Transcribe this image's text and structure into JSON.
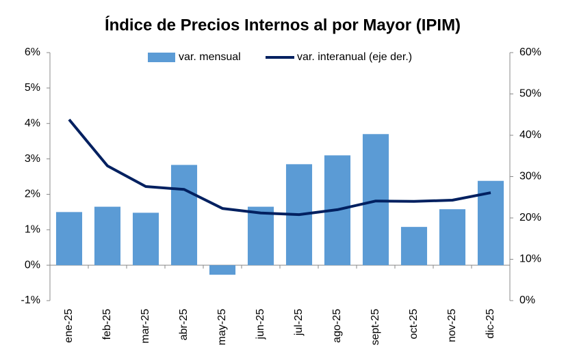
{
  "chart_data": {
    "type": "bar-line",
    "title": "Índice de Precios Internos al por Mayor (IPIM)",
    "categories": [
      "ene-25",
      "feb-25",
      "mar-25",
      "abr-25",
      "may-25",
      "jun-25",
      "jul-25",
      "ago-25",
      "sept-25",
      "oct-25",
      "nov-25",
      "dic-25"
    ],
    "series": [
      {
        "name": "var. mensual",
        "type": "bar",
        "color": "#5b9bd5",
        "values": [
          1.5,
          1.65,
          1.48,
          2.83,
          -0.27,
          1.65,
          2.85,
          3.1,
          3.7,
          1.08,
          1.58,
          2.38
        ]
      },
      {
        "name": "var. interanual (eje der.)",
        "type": "line",
        "axis": "y2",
        "color": "#002060",
        "values": [
          43.8,
          32.6,
          27.6,
          26.9,
          22.3,
          21.2,
          20.8,
          22.0,
          24.1,
          24.0,
          24.3,
          26.1
        ]
      }
    ],
    "ylim": [
      -1,
      6
    ],
    "yticks": [
      {
        "value": -1,
        "label": "-1%"
      },
      {
        "value": 0,
        "label": "0%"
      },
      {
        "value": 1,
        "label": "1%"
      },
      {
        "value": 2,
        "label": "2%"
      },
      {
        "value": 3,
        "label": "3%"
      },
      {
        "value": 4,
        "label": "4%"
      },
      {
        "value": 5,
        "label": "5%"
      },
      {
        "value": 6,
        "label": "6%"
      }
    ],
    "y2lim": [
      0,
      60
    ],
    "y2ticks": [
      {
        "value": 0,
        "label": "0%"
      },
      {
        "value": 10,
        "label": "10%"
      },
      {
        "value": 20,
        "label": "20%"
      },
      {
        "value": 30,
        "label": "30%"
      },
      {
        "value": 40,
        "label": "40%"
      },
      {
        "value": 50,
        "label": "50%"
      },
      {
        "value": 60,
        "label": "60%"
      }
    ],
    "legend": "top"
  }
}
